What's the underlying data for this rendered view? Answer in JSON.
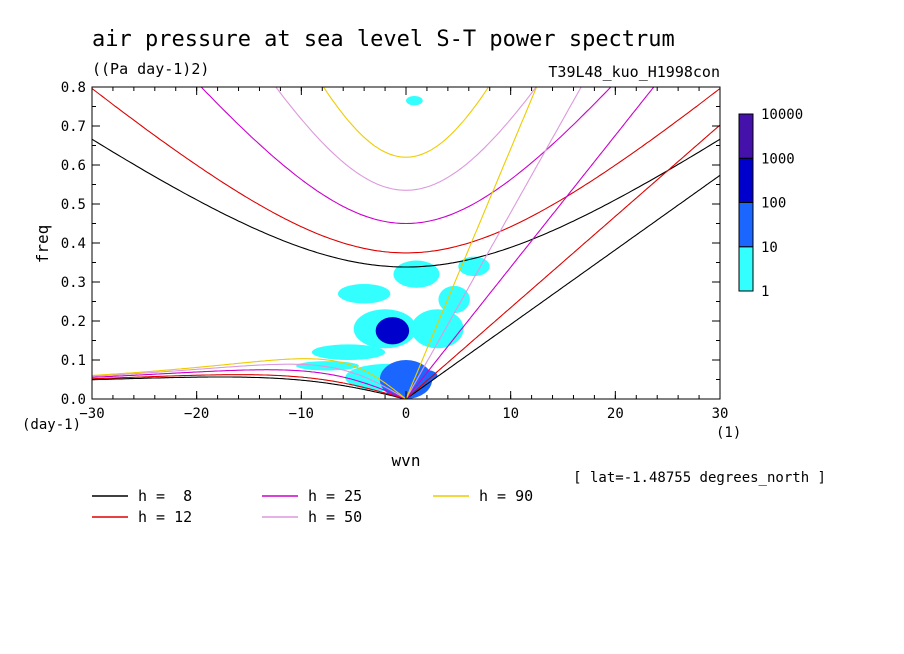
{
  "title": "air pressure at sea level S-T power spectrum",
  "units": "((Pa day-1)2)",
  "experiment": "T39L48_kuo_H1998con",
  "location_note": "[ lat=-1.48755 degrees_north ]",
  "chart_data": {
    "type": "heatmap",
    "xlabel": "wvn",
    "ylabel": "freq",
    "x_unit": "(1)",
    "y_unit": "(day-1)",
    "xlim": [
      -30,
      30
    ],
    "ylim": [
      0,
      0.8
    ],
    "x_ticks": [
      -30,
      -20,
      -10,
      0,
      10,
      20,
      30
    ],
    "x_tick_labels": [
      "-30",
      "-20",
      "-10",
      "0",
      "10",
      "20",
      "30"
    ],
    "y_ticks": [
      0,
      0.1,
      0.2,
      0.3,
      0.4,
      0.5,
      0.6,
      0.7,
      0.8
    ],
    "y_tick_labels": [
      "0.0",
      "0.1",
      "0.2",
      "0.3",
      "0.4",
      "0.5",
      "0.6",
      "0.7",
      "0.8"
    ],
    "colorbar": {
      "levels": [
        "1",
        "10",
        "100",
        "1000",
        "10000"
      ],
      "colors": [
        "#33ffff",
        "#1a66ff",
        "#0000cc",
        "#4411aa"
      ]
    },
    "dispersion_curves": [
      {
        "name": "h =  8",
        "h": 8,
        "color": "#000000"
      },
      {
        "name": "h = 12",
        "h": 12,
        "color": "#dd0000"
      },
      {
        "name": "h = 25",
        "h": 25,
        "color": "#cc00cc"
      },
      {
        "name": "h = 50",
        "h": 50,
        "color": "#dd99dd"
      },
      {
        "name": "h = 90",
        "h": 90,
        "color": "#eecc00"
      }
    ],
    "spectrum_blobs": [
      {
        "x": 0,
        "y": 0.05,
        "rx": 2.5,
        "ry": 0.05,
        "level": 1
      },
      {
        "x": -1.3,
        "y": 0.175,
        "rx": 1.6,
        "ry": 0.035,
        "level": 2
      },
      {
        "x": 1.8,
        "y": 0.06,
        "rx": 1.2,
        "ry": 0.015,
        "level": 1
      },
      {
        "x": -1.8,
        "y": 0.055,
        "rx": 4,
        "ry": 0.035,
        "level": 0
      },
      {
        "x": 3,
        "y": 0.18,
        "rx": 2.5,
        "ry": 0.05,
        "level": 0
      },
      {
        "x": -2,
        "y": 0.18,
        "rx": 3,
        "ry": 0.05,
        "level": 0
      },
      {
        "x": 1,
        "y": 0.32,
        "rx": 2.2,
        "ry": 0.035,
        "level": 0
      },
      {
        "x": 4.6,
        "y": 0.255,
        "rx": 1.5,
        "ry": 0.035,
        "level": 0
      },
      {
        "x": 6.5,
        "y": 0.34,
        "rx": 1.5,
        "ry": 0.025,
        "level": 0
      },
      {
        "x": -4,
        "y": 0.27,
        "rx": 2.5,
        "ry": 0.025,
        "level": 0
      },
      {
        "x": -5.5,
        "y": 0.12,
        "rx": 3.5,
        "ry": 0.02,
        "level": 0
      },
      {
        "x": -7.5,
        "y": 0.085,
        "rx": 3,
        "ry": 0.012,
        "level": 0
      },
      {
        "x": 0.8,
        "y": 0.765,
        "rx": 0.8,
        "ry": 0.012,
        "level": 0
      }
    ]
  }
}
